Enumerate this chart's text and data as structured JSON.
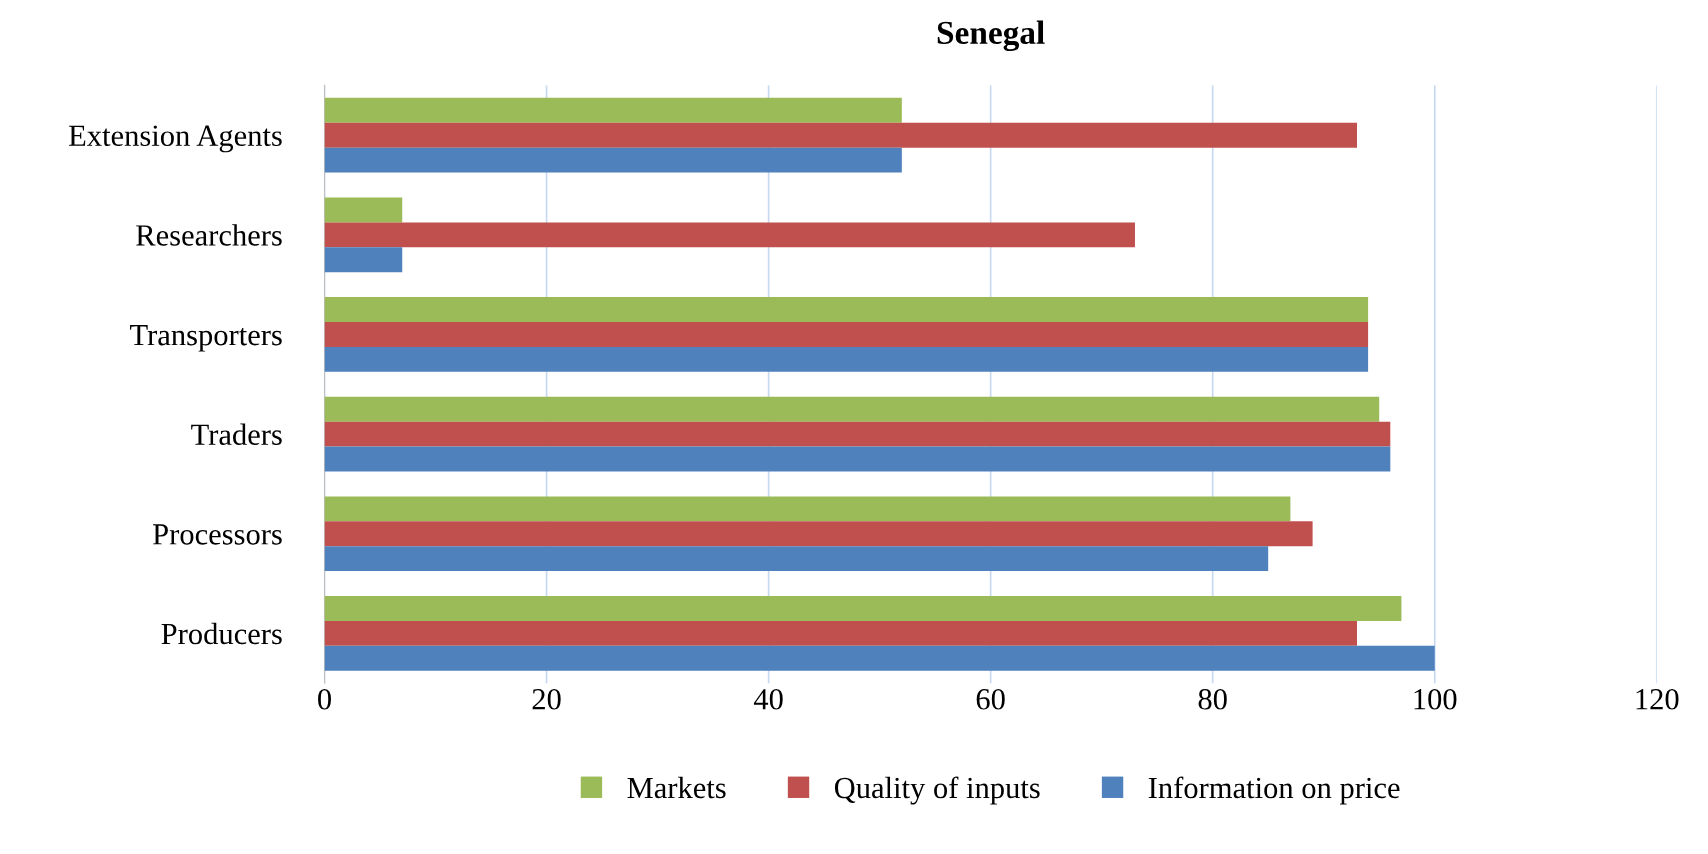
{
  "chart_data": {
    "type": "bar",
    "orientation": "horizontal",
    "title": "Senegal",
    "categories": [
      "Extension Agents",
      "Researchers",
      "Transporters",
      "Traders",
      "Processors",
      "Producers"
    ],
    "series": [
      {
        "name": "Markets",
        "color": "#9bbb59",
        "values": [
          52,
          7,
          94,
          95,
          87,
          97
        ]
      },
      {
        "name": "Quality of inputs",
        "color": "#c0504d",
        "values": [
          93,
          73,
          94,
          96,
          89,
          93
        ]
      },
      {
        "name": "Information on price",
        "color": "#4f81bd",
        "values": [
          52,
          7,
          94,
          96,
          85,
          100
        ]
      }
    ],
    "xlim": [
      0,
      120
    ],
    "xticks": [
      0,
      20,
      40,
      60,
      80,
      100,
      120
    ],
    "grid": "x",
    "legend": "bottom"
  }
}
